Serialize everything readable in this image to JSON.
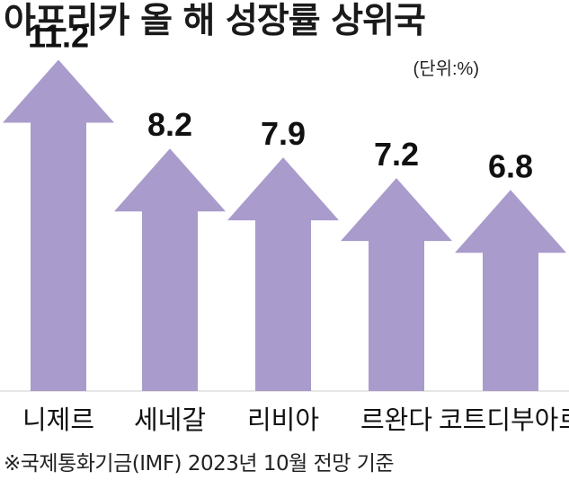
{
  "chart_data": {
    "type": "bar",
    "title": "아프리카 올 해 성장률 상위국",
    "unit": "(단위:%)",
    "categories": [
      "니제르",
      "세네갈",
      "리비아",
      "르완다",
      "코트디부아르"
    ],
    "values": [
      11.2,
      8.2,
      7.9,
      7.2,
      6.8
    ],
    "value_labels": [
      "11.2",
      "8.2",
      "7.9",
      "7.2",
      "6.8"
    ],
    "bar_color": "#a99bcb",
    "note": "※국제통화기금(IMF) 2023년 10월 전망 기준"
  }
}
